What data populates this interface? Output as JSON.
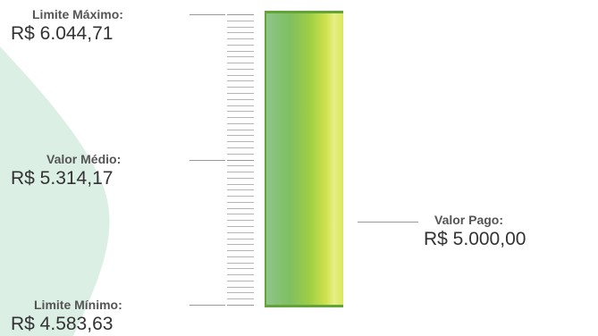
{
  "gauge": {
    "max": {
      "label": "Limite Máximo:",
      "value_text": "R$ 6.044,71",
      "value": 6044.71
    },
    "mid": {
      "label": "Valor Médio:",
      "value_text": "R$ 5.314,17",
      "value": 5314.17
    },
    "min": {
      "label": "Limite Mínimo:",
      "value_text": "R$ 4.583,63",
      "value": 4583.63
    },
    "paid": {
      "label": "Valor Pago:",
      "value_text": "R$ 5.000,00",
      "value": 5000.0
    }
  },
  "colors": {
    "bar_border": "#64a33a",
    "bar_light": "#e7ee86",
    "bar_dark": "#7fbf62",
    "blob": "#dcefe4",
    "connector": "#999999"
  }
}
